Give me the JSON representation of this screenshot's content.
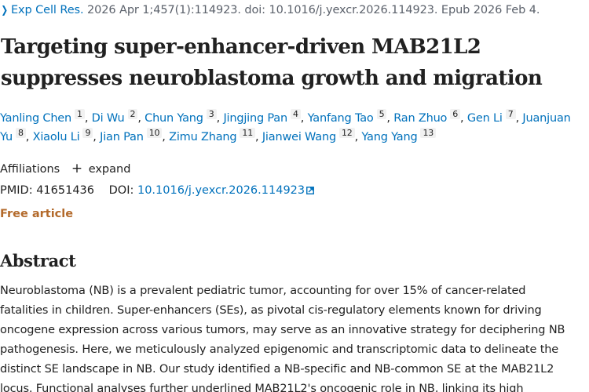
{
  "citation": {
    "journal": "Exp Cell Res.",
    "details": " 2026 Apr 1;457(1):114923. doi: 10.1016/j.yexcr.2026.114923. Epub 2026 Feb 4."
  },
  "title": "Targeting super-enhancer-driven MAB21L2 suppresses neuroblastoma growth and migration",
  "authors": [
    {
      "name": "Yanling Chen",
      "aff": "1"
    },
    {
      "name": "Di Wu",
      "aff": "2"
    },
    {
      "name": "Chun Yang",
      "aff": "3"
    },
    {
      "name": "Jingjing Pan",
      "aff": "4"
    },
    {
      "name": "Yanfang Tao",
      "aff": "5"
    },
    {
      "name": "Ran Zhuo",
      "aff": "6"
    },
    {
      "name": "Gen Li",
      "aff": "7"
    },
    {
      "name": "Juanjuan Yu",
      "aff": "8"
    },
    {
      "name": "Xiaolu Li",
      "aff": "9"
    },
    {
      "name": "Jian Pan",
      "aff": "10"
    },
    {
      "name": "Zimu Zhang",
      "aff": "11"
    },
    {
      "name": "Jianwei Wang",
      "aff": "12"
    },
    {
      "name": "Yang Yang",
      "aff": "13"
    }
  ],
  "affiliations": {
    "label": "Affiliations",
    "expand_symbol": "+",
    "expand_label": "expand"
  },
  "identifiers": {
    "pmid_label": "PMID:",
    "pmid": "41651436",
    "doi_label": "DOI:",
    "doi": "10.1016/j.yexcr.2026.114923",
    "doi_icon": "external-link-icon"
  },
  "free_article": "Free article",
  "abstract": {
    "heading": "Abstract",
    "text": "Neuroblastoma (NB) is a prevalent pediatric tumor, accounting for over 15% of cancer-related fatalities in children. Super-enhancers (SEs), as pivotal cis-regulatory elements known for driving oncogene expression across various tumors, may serve as an innovative strategy for deciphering NB pathogenesis. Here, we meticulously analyzed epigenomic and transcriptomic data to delineate the distinct SE landscape in NB. Our study identified a NB-specific and NB-common SE at the MAB21L2 locus. Functional analyses further underlined MAB21L2's oncogenic role in NB, linking its high"
  },
  "colors": {
    "link": "#0071bc",
    "text": "#212121",
    "muted": "#5b616b",
    "free_article": "#b36a2b",
    "aff_badge_bg": "#f1f1f1"
  }
}
